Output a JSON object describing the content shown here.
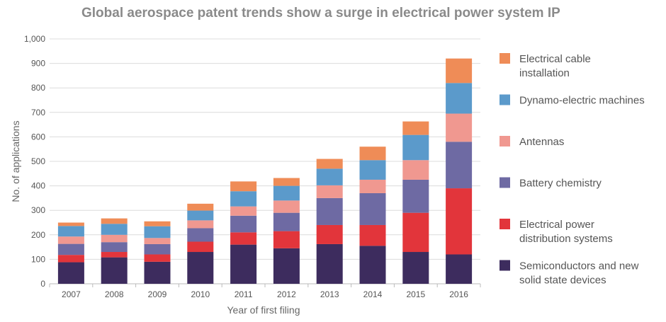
{
  "chart_data": {
    "type": "bar",
    "stacked": true,
    "title": "Global aerospace patent trends show a surge in electrical power system IP",
    "xlabel": "Year of first filing",
    "ylabel": "No. of applications",
    "ylim": [
      0,
      1000
    ],
    "yticks": [
      "0",
      "100",
      "200",
      "300",
      "400",
      "500",
      "600",
      "700",
      "800",
      "900",
      "1,000"
    ],
    "grid": true,
    "legend_position": "right",
    "categories": [
      "2007",
      "2008",
      "2009",
      "2010",
      "2011",
      "2012",
      "2013",
      "2014",
      "2015",
      "2016"
    ],
    "series": [
      {
        "name": "Semiconductors and new solid state devices",
        "color": "#3d2c5e",
        "values": [
          88,
          108,
          90,
          130,
          160,
          145,
          162,
          155,
          130,
          120
        ]
      },
      {
        "name": "Electrical power distribution systems",
        "color": "#e2353b",
        "values": [
          30,
          22,
          30,
          42,
          50,
          70,
          78,
          85,
          160,
          270
        ]
      },
      {
        "name": "Battery chemistry",
        "color": "#6e6aa3",
        "values": [
          45,
          40,
          42,
          55,
          68,
          75,
          110,
          130,
          135,
          190
        ]
      },
      {
        "name": "Antennas",
        "color": "#f09890",
        "values": [
          30,
          30,
          25,
          32,
          38,
          50,
          52,
          55,
          80,
          115
        ]
      },
      {
        "name": "Dynamo-electric machines",
        "color": "#5b9acb",
        "values": [
          43,
          45,
          48,
          40,
          62,
          60,
          68,
          80,
          103,
          125
        ]
      },
      {
        "name": "Electrical cable installation",
        "color": "#ef8c57",
        "values": [
          14,
          22,
          20,
          28,
          40,
          32,
          40,
          55,
          55,
          100
        ]
      }
    ],
    "legend_order": [
      5,
      4,
      3,
      2,
      1,
      0
    ]
  }
}
